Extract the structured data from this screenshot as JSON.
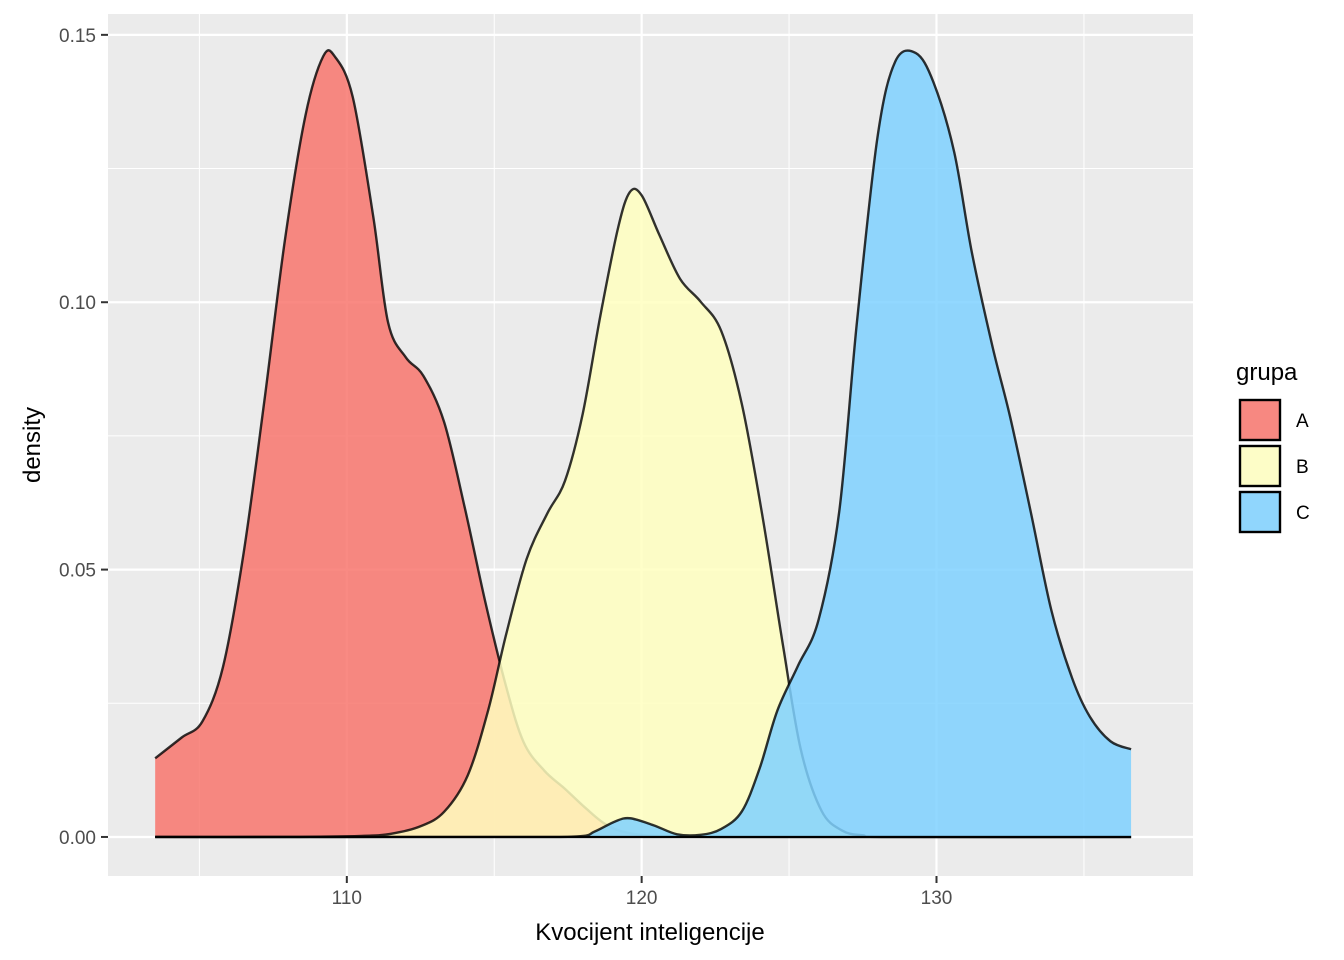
{
  "chart_data": {
    "type": "area",
    "subtype": "density",
    "title": "",
    "xlabel": "Kvocijent inteligencije",
    "ylabel": "density",
    "xlim": [
      101.9,
      138.7
    ],
    "ylim": [
      -0.0073,
      0.1539
    ],
    "x_ticks": [
      110,
      120,
      130
    ],
    "x_tick_labels": [
      "110",
      "120",
      "130"
    ],
    "x_minor_ticks": [
      105,
      115,
      125,
      135
    ],
    "y_ticks": [
      0.0,
      0.05,
      0.1,
      0.15
    ],
    "y_tick_labels": [
      "0.00",
      "0.05",
      "0.10",
      "0.15"
    ],
    "y_minor_ticks": [
      0.025,
      0.075,
      0.125
    ],
    "grid": true,
    "legend": {
      "title": "grupa",
      "position": "right"
    },
    "series": [
      {
        "name": "A",
        "color": "#F8766D",
        "points": [
          [
            103.5,
            0.0147
          ],
          [
            104.4,
            0.0186
          ],
          [
            105.1,
            0.0216
          ],
          [
            105.8,
            0.0318
          ],
          [
            106.5,
            0.0531
          ],
          [
            107.2,
            0.0814
          ],
          [
            107.9,
            0.1116
          ],
          [
            108.6,
            0.135
          ],
          [
            109.2,
            0.146
          ],
          [
            109.6,
            0.1459
          ],
          [
            110.2,
            0.1384
          ],
          [
            110.9,
            0.1159
          ],
          [
            111.4,
            0.0962
          ],
          [
            112.0,
            0.0897
          ],
          [
            112.6,
            0.0862
          ],
          [
            113.3,
            0.0776
          ],
          [
            114.0,
            0.0616
          ],
          [
            114.7,
            0.0439
          ],
          [
            115.4,
            0.0282
          ],
          [
            116.0,
            0.0177
          ],
          [
            116.7,
            0.0124
          ],
          [
            117.4,
            0.009
          ],
          [
            118.1,
            0.0054
          ],
          [
            118.8,
            0.0023
          ],
          [
            119.6,
            0.0007
          ],
          [
            121.0,
            0.0001
          ],
          [
            125.0,
            0.0
          ],
          [
            130.0,
            0.0
          ],
          [
            136.6,
            0.0
          ]
        ]
      },
      {
        "name": "B",
        "color": "#FFFFBF",
        "points": [
          [
            103.5,
            0.0
          ],
          [
            108.0,
            0.0
          ],
          [
            110.5,
            0.0002
          ],
          [
            111.5,
            0.0006
          ],
          [
            112.5,
            0.002
          ],
          [
            113.3,
            0.0047
          ],
          [
            114.1,
            0.0115
          ],
          [
            114.8,
            0.0238
          ],
          [
            115.4,
            0.0378
          ],
          [
            116.1,
            0.052
          ],
          [
            116.8,
            0.0605
          ],
          [
            117.4,
            0.0666
          ],
          [
            118.0,
            0.0791
          ],
          [
            118.6,
            0.0975
          ],
          [
            119.2,
            0.1139
          ],
          [
            119.6,
            0.1206
          ],
          [
            120.0,
            0.12
          ],
          [
            120.6,
            0.1126
          ],
          [
            121.3,
            0.1044
          ],
          [
            122.0,
            0.1001
          ],
          [
            122.7,
            0.0946
          ],
          [
            123.4,
            0.0809
          ],
          [
            124.1,
            0.0599
          ],
          [
            124.8,
            0.0356
          ],
          [
            125.4,
            0.0163
          ],
          [
            126.1,
            0.0049
          ],
          [
            126.8,
            0.0012
          ],
          [
            127.5,
            0.0003
          ],
          [
            128.5,
            0.0
          ],
          [
            136.6,
            0.0
          ]
        ]
      },
      {
        "name": "C",
        "color": "#7FD1FF",
        "points": [
          [
            103.5,
            0.0
          ],
          [
            115.0,
            0.0
          ],
          [
            117.8,
            0.0001
          ],
          [
            118.4,
            0.001
          ],
          [
            119.1,
            0.0029
          ],
          [
            119.6,
            0.0035
          ],
          [
            120.4,
            0.0022
          ],
          [
            121.2,
            0.0005
          ],
          [
            122.0,
            0.0004
          ],
          [
            122.7,
            0.0015
          ],
          [
            123.4,
            0.0048
          ],
          [
            124.0,
            0.0128
          ],
          [
            124.6,
            0.0236
          ],
          [
            125.3,
            0.032
          ],
          [
            126.0,
            0.0406
          ],
          [
            126.7,
            0.0608
          ],
          [
            127.3,
            0.0962
          ],
          [
            128.0,
            0.1309
          ],
          [
            128.6,
            0.145
          ],
          [
            129.3,
            0.1466
          ],
          [
            129.9,
            0.1411
          ],
          [
            130.6,
            0.1281
          ],
          [
            131.2,
            0.1093
          ],
          [
            131.9,
            0.0917
          ],
          [
            132.5,
            0.0785
          ],
          [
            133.2,
            0.0607
          ],
          [
            133.9,
            0.0423
          ],
          [
            134.6,
            0.0297
          ],
          [
            135.2,
            0.0225
          ],
          [
            135.9,
            0.0179
          ],
          [
            136.6,
            0.0164
          ]
        ]
      }
    ]
  }
}
